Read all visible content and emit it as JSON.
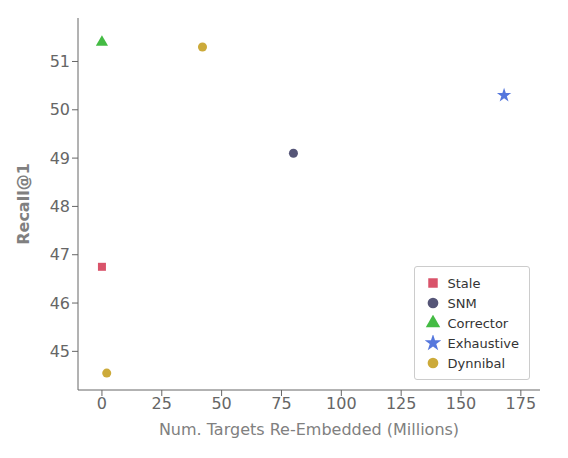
{
  "chart_data": {
    "type": "scatter",
    "xlabel": "Num. Targets Re-Embedded (Millions)",
    "ylabel": "Recall@1",
    "xlim": [
      -10,
      183
    ],
    "ylim": [
      44.2,
      51.9
    ],
    "xticks": [
      0,
      25,
      50,
      75,
      100,
      125,
      150,
      175
    ],
    "yticks": [
      45,
      46,
      47,
      48,
      49,
      50,
      51
    ],
    "grid": false,
    "legend": "lower right",
    "series": [
      {
        "name": "Stale",
        "color": "#d9536a",
        "marker": "square",
        "x": [
          0
        ],
        "y": [
          46.75
        ]
      },
      {
        "name": "SNM",
        "color": "#555577",
        "marker": "circle",
        "x": [
          80
        ],
        "y": [
          49.1
        ]
      },
      {
        "name": "Corrector",
        "color": "#44bb44",
        "marker": "triangle",
        "x": [
          0
        ],
        "y": [
          51.4
        ]
      },
      {
        "name": "Exhaustive",
        "color": "#5577dd",
        "marker": "star",
        "x": [
          168
        ],
        "y": [
          50.3
        ]
      },
      {
        "name": "Dynnibal",
        "color": "#ccaa3a",
        "marker": "circle",
        "x": [
          2,
          42
        ],
        "y": [
          44.55,
          51.3
        ]
      }
    ]
  }
}
